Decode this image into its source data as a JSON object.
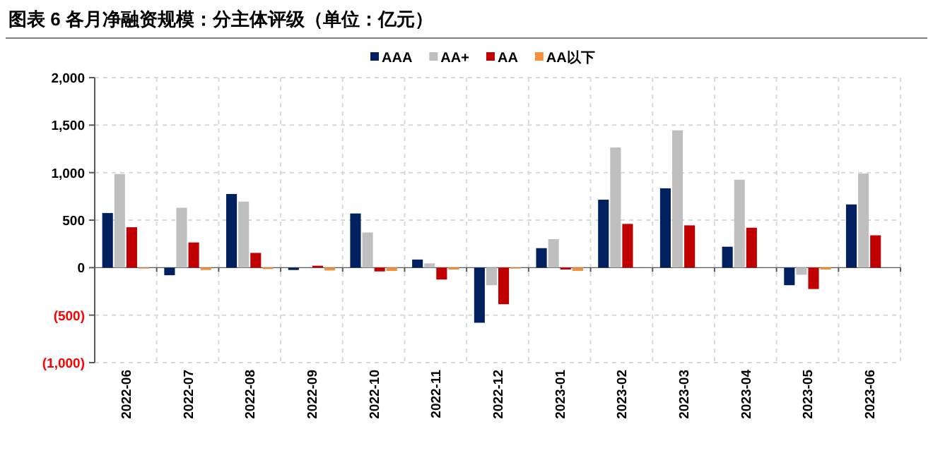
{
  "chart_data": {
    "type": "bar",
    "title": "图表 6 各月净融资规模：分主体评级（单位：亿元）",
    "categories": [
      "2022-06",
      "2022-07",
      "2022-08",
      "2022-09",
      "2022-10",
      "2022-11",
      "2022-12",
      "2023-01",
      "2023-02",
      "2023-03",
      "2023-04",
      "2023-05",
      "2023-06"
    ],
    "series": [
      {
        "name": "AAA",
        "color": "#002060",
        "values": [
          575,
          -80,
          775,
          -25,
          570,
          85,
          -580,
          205,
          715,
          835,
          220,
          -185,
          665
        ]
      },
      {
        "name": "AA+",
        "color": "#bfbfbf",
        "values": [
          985,
          630,
          695,
          0,
          370,
          45,
          -185,
          300,
          1265,
          1445,
          925,
          -75,
          990
        ]
      },
      {
        "name": "AA",
        "color": "#c00000",
        "values": [
          425,
          265,
          155,
          20,
          -40,
          -125,
          -385,
          -20,
          460,
          445,
          420,
          -225,
          340
        ]
      },
      {
        "name": "AA以下",
        "color": "#f4903a",
        "values": [
          -10,
          -25,
          -15,
          -30,
          -35,
          -20,
          -10,
          -35,
          null,
          null,
          null,
          -20,
          null
        ]
      }
    ],
    "ylim": [
      -1000,
      2000
    ],
    "yticks": [
      {
        "value": -1000,
        "label": "(1,000)"
      },
      {
        "value": -500,
        "label": "(500)"
      },
      {
        "value": 0,
        "label": "0"
      },
      {
        "value": 500,
        "label": "500"
      },
      {
        "value": 1000,
        "label": "1,000"
      },
      {
        "value": 1500,
        "label": "1,500"
      },
      {
        "value": 2000,
        "label": "2,000"
      }
    ],
    "grid": true,
    "legend": "top"
  }
}
